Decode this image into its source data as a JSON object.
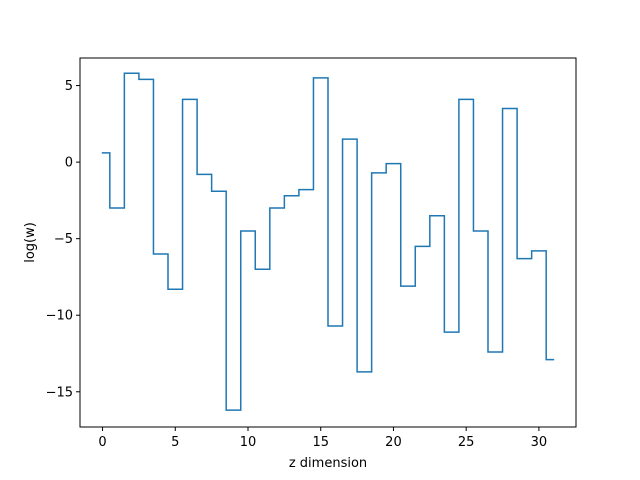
{
  "chart_data": {
    "type": "line",
    "drawstyle": "steps-mid",
    "title": "",
    "xlabel": "z dimension",
    "ylabel": "log(w)",
    "xlim": [
      -1.55,
      32.55
    ],
    "ylim": [
      -17.3,
      6.8
    ],
    "xticks": [
      0,
      5,
      10,
      15,
      20,
      25,
      30
    ],
    "yticks": [
      -15,
      -10,
      -5,
      0,
      5
    ],
    "grid": false,
    "legend": "none",
    "series": [
      {
        "color": "#1f77b4",
        "x": [
          0,
          1,
          2,
          3,
          4,
          5,
          6,
          7,
          8,
          9,
          10,
          11,
          12,
          13,
          14,
          15,
          16,
          17,
          18,
          19,
          20,
          21,
          22,
          23,
          24,
          25,
          26,
          27,
          28,
          29,
          30,
          31
        ],
        "values": [
          0.6,
          -3.0,
          5.8,
          5.4,
          -6.0,
          -8.3,
          4.1,
          -0.8,
          -1.9,
          -16.2,
          -4.5,
          -7.0,
          -3.0,
          -2.2,
          -1.8,
          5.5,
          -10.7,
          1.5,
          -13.7,
          -0.7,
          -0.1,
          -8.1,
          -5.5,
          -3.5,
          -11.1,
          4.1,
          -4.5,
          -12.4,
          3.5,
          -6.3,
          -5.8,
          -12.9
        ]
      }
    ]
  }
}
